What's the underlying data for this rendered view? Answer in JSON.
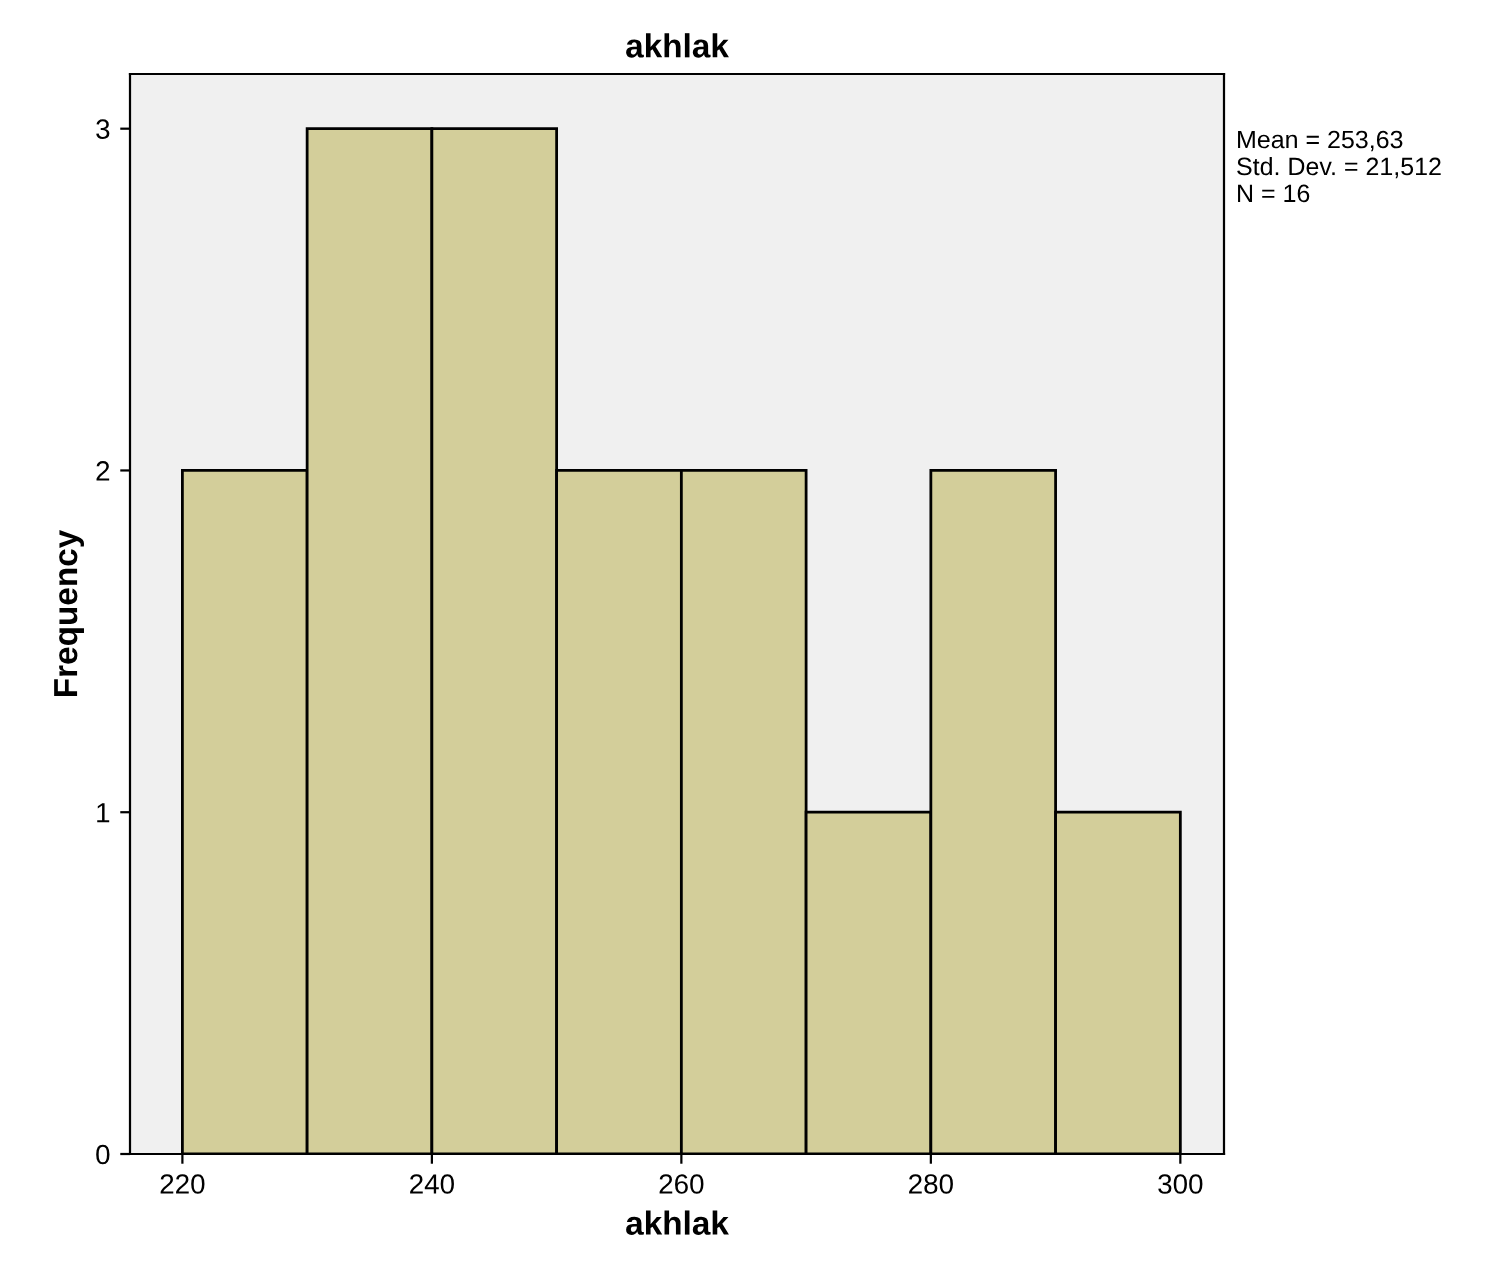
{
  "chart_data": {
    "type": "histogram",
    "title": "akhlak",
    "xlabel": "akhlak",
    "ylabel": "Frequency",
    "bins": [
      220,
      230,
      240,
      250,
      260,
      270,
      280,
      290,
      300
    ],
    "values": [
      2,
      3,
      3,
      2,
      2,
      1,
      2,
      1
    ],
    "color": "#d3ce9a",
    "xlim": [
      215.8,
      303.5
    ],
    "ylim": [
      0,
      3.16
    ],
    "xticks": [
      220,
      240,
      260,
      280,
      300
    ],
    "yticks": [
      0,
      1,
      2,
      3
    ],
    "grid": false,
    "annotations": [
      "Mean = 253,63\nStd. Dev. = 21,512\nN = 16"
    ]
  }
}
